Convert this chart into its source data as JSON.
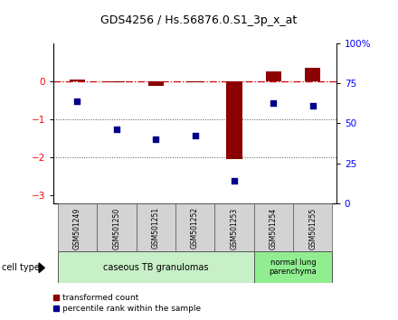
{
  "title": "GDS4256 / Hs.56876.0.S1_3p_x_at",
  "samples": [
    "GSM501249",
    "GSM501250",
    "GSM501251",
    "GSM501252",
    "GSM501253",
    "GSM501254",
    "GSM501255"
  ],
  "transformed_count": [
    0.05,
    -0.02,
    -0.12,
    -0.02,
    -2.05,
    0.25,
    0.35
  ],
  "percentile_rank_scaled": [
    -0.52,
    -1.27,
    -1.52,
    -1.42,
    -2.62,
    -0.58,
    -0.65
  ],
  "ylim_left": [
    -3.2,
    1.0
  ],
  "ylim_right": [
    0,
    100
  ],
  "yticks_left": [
    0,
    -1,
    -2,
    -3
  ],
  "yticks_right_vals": [
    0,
    25,
    50,
    75,
    100
  ],
  "yticks_right_labels": [
    "0",
    "25",
    "50",
    "75",
    "100%"
  ],
  "group1_label": "caseous TB granulomas",
  "group2_label": "normal lung\nparenchyma",
  "group1_color": "#c8f0c8",
  "group2_color": "#90ee90",
  "cell_type_label": "cell type",
  "legend_red_label": "transformed count",
  "legend_blue_label": "percentile rank within the sample",
  "bar_color": "#8b0000",
  "dot_color": "#00008b",
  "ref_line_color": "#cc0000",
  "dotted_line_color": "#505050",
  "sample_box_color": "#d3d3d3",
  "title_fontsize": 9,
  "bar_width": 0.4,
  "dot_size": 20
}
